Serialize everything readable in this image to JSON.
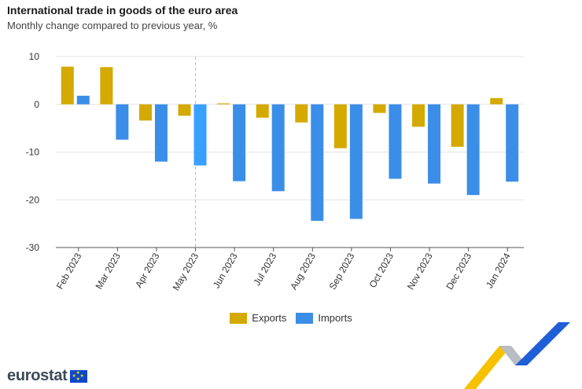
{
  "header": {
    "title": "International trade in goods of the euro area",
    "subtitle": "Monthly change compared to previous year, %"
  },
  "chart_data": {
    "type": "bar",
    "title": "International trade in goods of the euro area",
    "subtitle": "Monthly change compared to previous year, %",
    "xlabel": "",
    "ylabel": "",
    "ylim": [
      -30,
      10
    ],
    "yticks": [
      10,
      0,
      -10,
      -20,
      -30
    ],
    "grid": true,
    "categories": [
      "Feb 2023",
      "Mar 2023",
      "Apr 2023",
      "May 2023",
      "Jun 2023",
      "Jul 2023",
      "Aug 2023",
      "Sep 2023",
      "Oct 2023",
      "Nov 2023",
      "Dec 2023",
      "Jan 2024"
    ],
    "series": [
      {
        "name": "Exports",
        "color": "#d4a900",
        "values": [
          7.9,
          7.8,
          -3.4,
          -2.4,
          0.2,
          -2.8,
          -3.8,
          -9.2,
          -1.8,
          -4.7,
          -8.9,
          1.3
        ]
      },
      {
        "name": "Imports",
        "color": "#3b8ee8",
        "values": [
          1.8,
          -7.4,
          -12.0,
          -12.8,
          -16.1,
          -18.2,
          -24.4,
          -24.0,
          -15.6,
          -16.6,
          -19.0,
          -16.2
        ]
      }
    ],
    "highlight": {
      "category_index": 3,
      "series": "Imports",
      "color": "#3aa0ff"
    },
    "legend_position": "bottom-center"
  },
  "legend": [
    {
      "label": "Exports",
      "color": "#d4a900"
    },
    {
      "label": "Imports",
      "color": "#3b8ee8"
    }
  ],
  "footer": {
    "logo_text": "eurostat"
  }
}
